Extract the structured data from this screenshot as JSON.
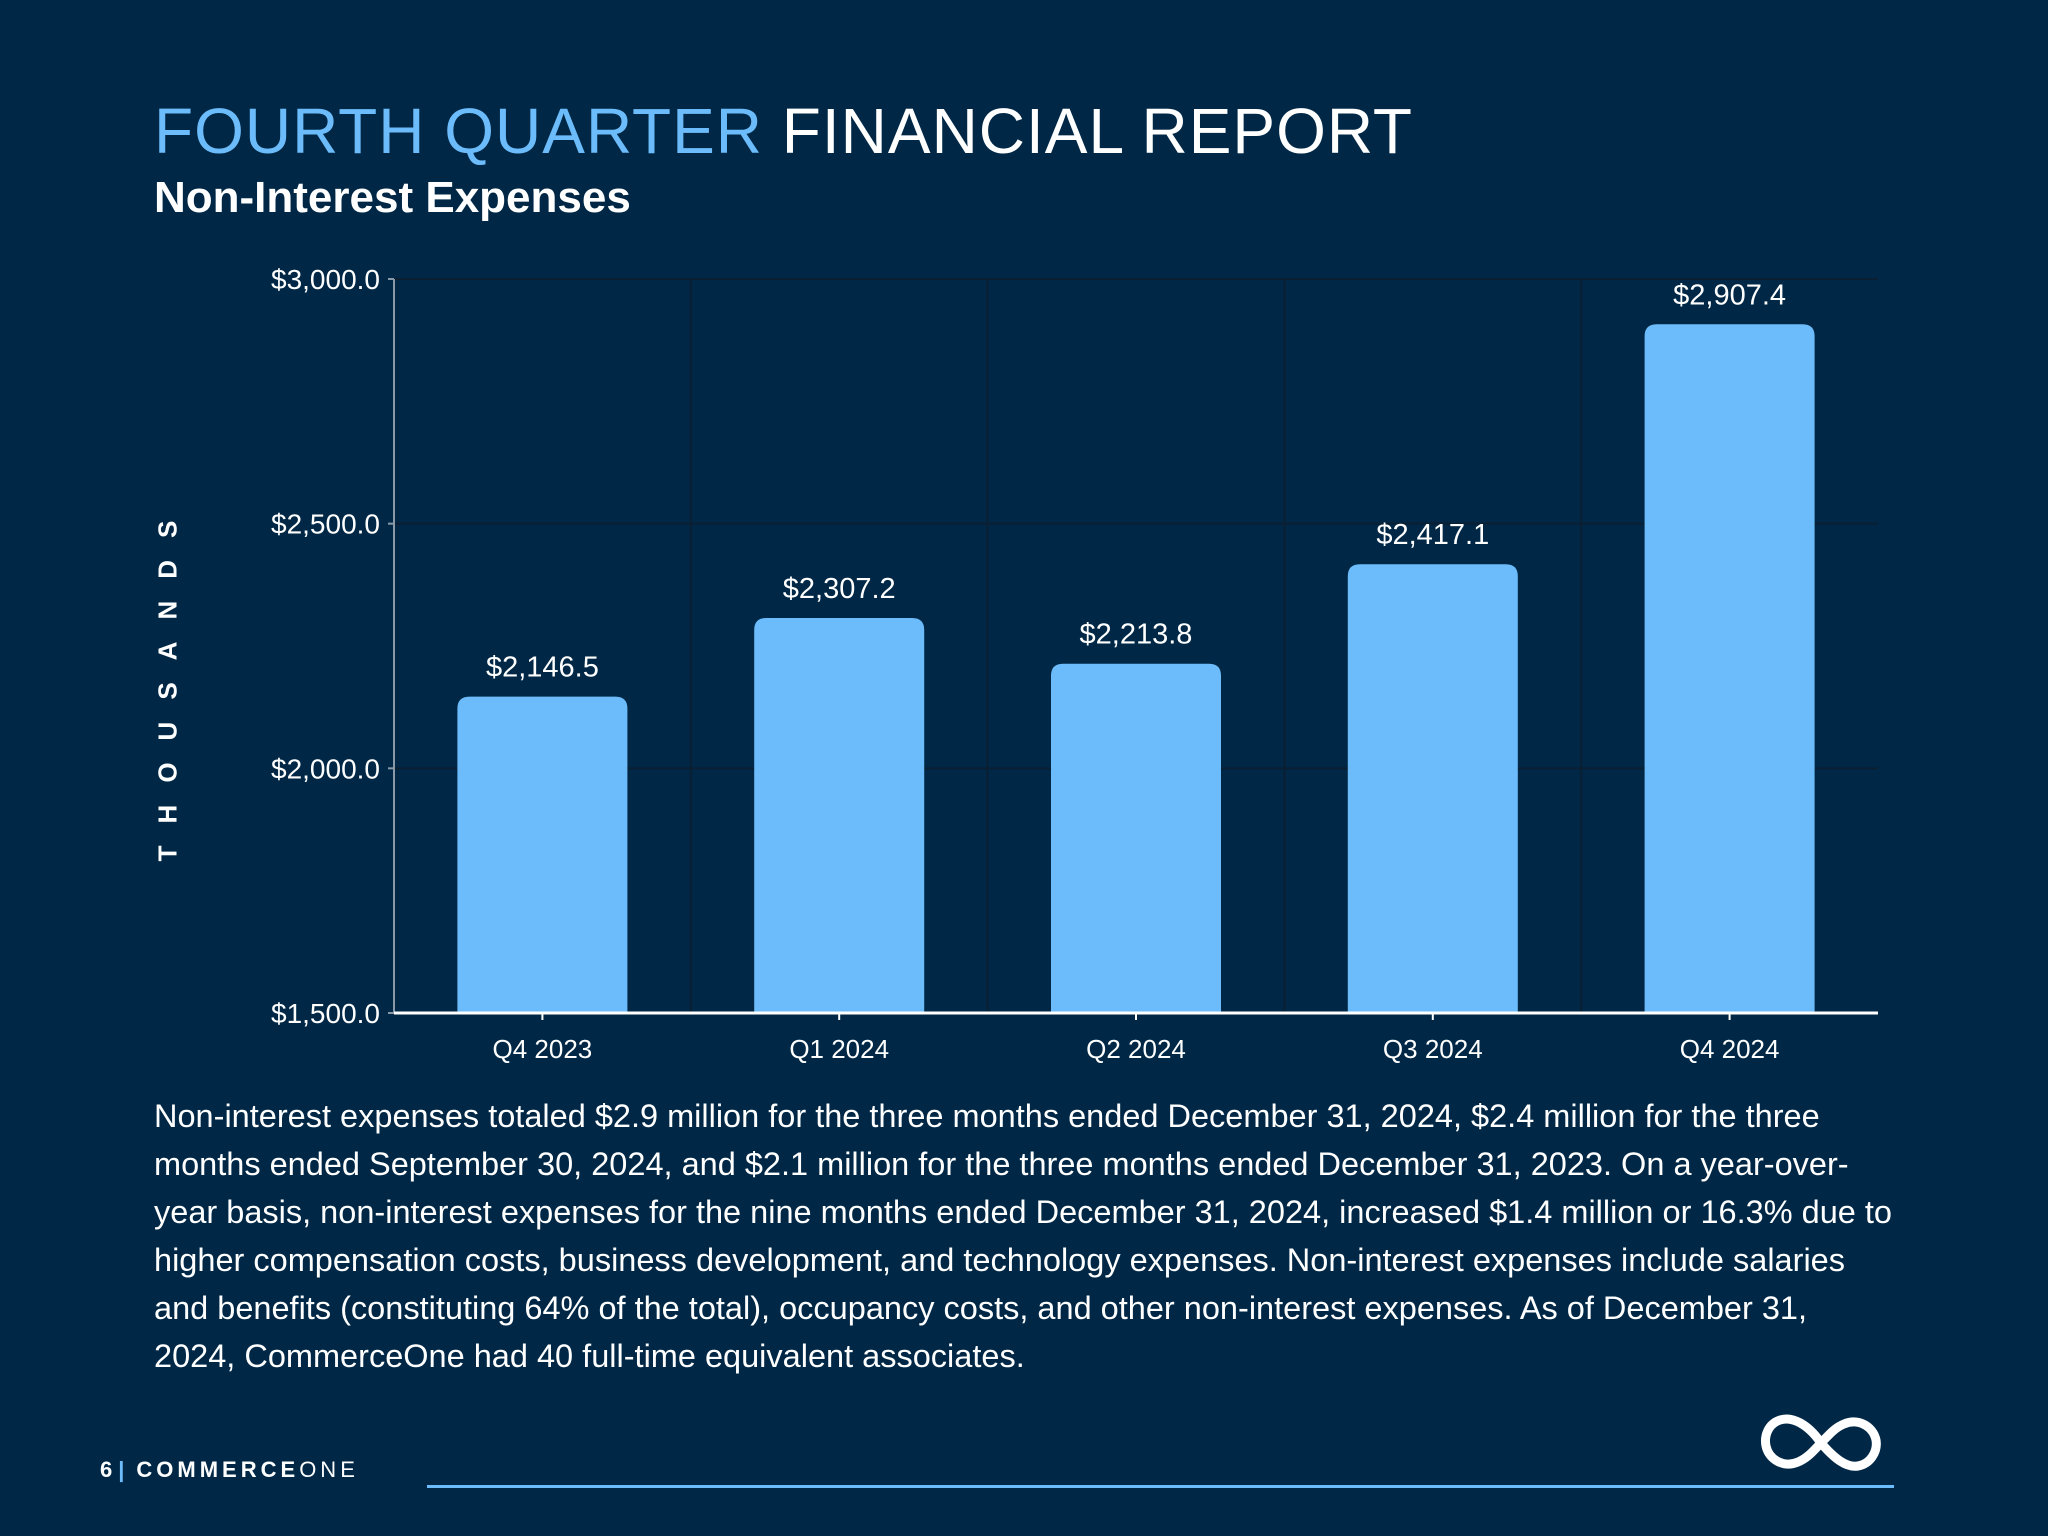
{
  "header": {
    "title_accent": "FOURTH QUARTER",
    "title_rest": "FINANCIAL REPORT",
    "subtitle": "Non-Interest Expenses"
  },
  "chart_data": {
    "type": "bar",
    "categories": [
      "Q4 2023",
      "Q1 2024",
      "Q2 2024",
      "Q3 2024",
      "Q4 2024"
    ],
    "values": [
      2146.5,
      2307.2,
      2213.8,
      2417.1,
      2907.4
    ],
    "data_labels": [
      "$2,146.5",
      "$2,307.2",
      "$2,213.8",
      "$2,417.1",
      "$2,907.4"
    ],
    "ylabel": "THOUSANDS",
    "ylim": [
      1500,
      3000
    ],
    "yticks": [
      1500,
      2000,
      2500,
      3000
    ],
    "ytick_labels": [
      "$1,500.0",
      "$2,000.0",
      "$2,500.0",
      "$3,000.0"
    ],
    "bar_color": "#6cbcfb",
    "grid": true
  },
  "body_text": "Non-interest expenses totaled $2.9 million for the three months ended December 31, 2024, $2.4 million for the three months ended September 30, 2024, and $2.1 million for the three months ended December 31, 2023. On a year-over-year basis, non-interest expenses for the nine months ended December 31, 2024, increased $1.4 million or 16.3% due to higher compensation costs, business development, and technology expenses. Non-interest expenses include salaries and benefits (constituting 64% of the total), occupancy costs, and other non-interest expenses. As of December 31, 2024, CommerceOne had 40 full-time equivalent associates.",
  "footer": {
    "page_number": "6",
    "separator": "|",
    "brand_bold": "COMMERCE",
    "brand_light": "ONE"
  },
  "colors": {
    "background": "#002846",
    "accent": "#6cbcfb",
    "text": "#ffffff"
  },
  "icons": {
    "logo": "infinity-logo-icon"
  }
}
